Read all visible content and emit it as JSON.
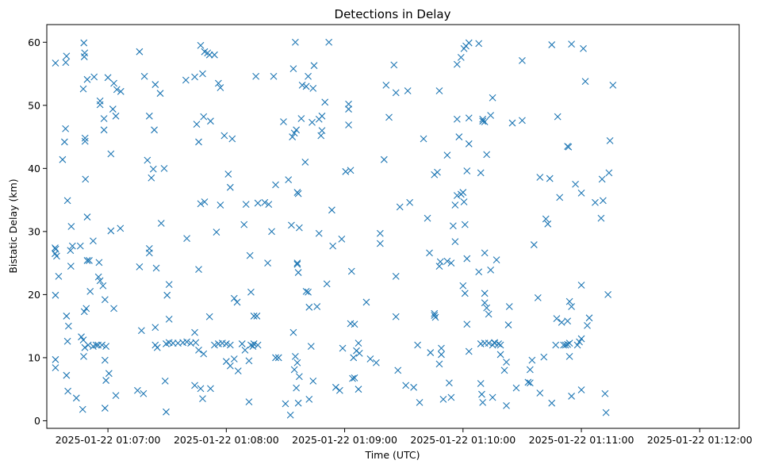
{
  "chart_data": {
    "type": "scatter",
    "title": "Detections in Delay",
    "xlabel": "Time (UTC)",
    "ylabel": "Bistatic Delay (km)",
    "marker": "x",
    "color": "#1f77b4",
    "x_unit": "seconds since 2025-01-22 01:07:00",
    "xlim": [
      -31,
      320
    ],
    "ylim": [
      -1.2,
      62.8
    ],
    "xticks": [
      {
        "value": 0,
        "label": "2025-01-22 01:07:00"
      },
      {
        "value": 60,
        "label": "2025-01-22 01:08:00"
      },
      {
        "value": 120,
        "label": "2025-01-22 01:09:00"
      },
      {
        "value": 180,
        "label": "2025-01-22 01:10:00"
      },
      {
        "value": 240,
        "label": "2025-01-22 01:11:00"
      },
      {
        "value": 300,
        "label": "2025-01-22 01:12:00"
      }
    ],
    "yticks": [
      {
        "value": 0,
        "label": "0"
      },
      {
        "value": 10,
        "label": "10"
      },
      {
        "value": 20,
        "label": "20"
      },
      {
        "value": 30,
        "label": "30"
      },
      {
        "value": 40,
        "label": "40"
      },
      {
        "value": 50,
        "label": "50"
      },
      {
        "value": 60,
        "label": "60"
      }
    ],
    "points": [
      [
        -26.6,
        56.7
      ],
      [
        -21.0,
        57.8
      ],
      [
        -21.4,
        56.8
      ],
      [
        -12.0,
        57.7
      ],
      [
        -12.2,
        59.9
      ],
      [
        -11.8,
        58.3
      ],
      [
        -25.0,
        22.9
      ],
      [
        -26.6,
        19.9
      ],
      [
        -26.8,
        27.4
      ],
      [
        -26.8,
        26.5
      ],
      [
        -26.6,
        9.7
      ],
      [
        -26.6,
        8.4
      ],
      [
        -26.5,
        27.2
      ],
      [
        -26.0,
        26.1
      ],
      [
        -23.0,
        41.4
      ],
      [
        -22.0,
        44.2
      ],
      [
        -20.5,
        34.9
      ],
      [
        -21.5,
        46.3
      ],
      [
        -18.0,
        27.7
      ],
      [
        -18.6,
        30.8
      ],
      [
        -19.0,
        27.0
      ],
      [
        -18.8,
        24.5
      ],
      [
        -20.5,
        12.6
      ],
      [
        -20.0,
        15.0
      ],
      [
        -21.0,
        16.6
      ],
      [
        -20.3,
        4.7
      ],
      [
        -21.0,
        7.2
      ],
      [
        -16.0,
        3.6
      ],
      [
        -14.0,
        27.7
      ],
      [
        -13.5,
        13.3
      ],
      [
        -12.5,
        12.8
      ],
      [
        -11.7,
        11.6
      ],
      [
        -12.3,
        10.2
      ],
      [
        -12.0,
        17.3
      ],
      [
        -11.0,
        17.8
      ],
      [
        -12.8,
        1.8
      ],
      [
        -10.5,
        25.4
      ],
      [
        -10.5,
        32.3
      ],
      [
        -11.4,
        38.3
      ],
      [
        -11.6,
        44.8
      ],
      [
        -11.6,
        44.3
      ],
      [
        -12.5,
        52.6
      ],
      [
        -10.5,
        54.1
      ],
      [
        -7.0,
        54.5
      ],
      [
        -9.0,
        20.5
      ],
      [
        -9.5,
        25.4
      ],
      [
        -4.5,
        25.1
      ],
      [
        -4.8,
        22.8
      ],
      [
        -4.0,
        22.2
      ],
      [
        -2.5,
        21.4
      ],
      [
        -1.5,
        19.2
      ],
      [
        -1.0,
        11.8
      ],
      [
        -1.5,
        9.6
      ],
      [
        -3.0,
        12.0
      ],
      [
        -6.0,
        12.0
      ],
      [
        -7.5,
        11.8
      ],
      [
        -7.5,
        28.5
      ],
      [
        -4.0,
        50.1
      ],
      [
        -4.0,
        50.7
      ],
      [
        -2.0,
        46.1
      ],
      [
        -2.0,
        47.9
      ],
      [
        -1.5,
        2.0
      ],
      [
        0.5,
        7.5
      ],
      [
        1.5,
        42.3
      ],
      [
        2.5,
        49.4
      ],
      [
        3.0,
        53.5
      ],
      [
        4.0,
        48.3
      ],
      [
        4.5,
        52.5
      ],
      [
        6.5,
        52.2
      ],
      [
        6.3,
        30.5
      ],
      [
        1.5,
        30.1
      ],
      [
        0.0,
        54.4
      ],
      [
        3.0,
        17.8
      ],
      [
        4.0,
        4.0
      ],
      [
        -1.0,
        6.4
      ],
      [
        -5.0,
        12.0
      ],
      [
        -10.0,
        12.0
      ],
      [
        15.0,
        4.8
      ],
      [
        18.0,
        4.3
      ],
      [
        16.0,
        24.4
      ],
      [
        17.0,
        14.3
      ],
      [
        16.0,
        58.5
      ],
      [
        18.5,
        54.6
      ],
      [
        20.0,
        41.3
      ],
      [
        21.0,
        48.3
      ],
      [
        21.0,
        27.3
      ],
      [
        21.0,
        26.6
      ],
      [
        22.0,
        38.5
      ],
      [
        23.0,
        39.9
      ],
      [
        23.5,
        46.1
      ],
      [
        24.0,
        53.3
      ],
      [
        24.0,
        14.8
      ],
      [
        24.0,
        12.0
      ],
      [
        24.5,
        24.2
      ],
      [
        25.0,
        11.6
      ],
      [
        26.5,
        51.9
      ],
      [
        27.0,
        31.3
      ],
      [
        28.5,
        40.0
      ],
      [
        29.0,
        6.3
      ],
      [
        29.5,
        1.4
      ],
      [
        30.0,
        19.9
      ],
      [
        31.0,
        21.6
      ],
      [
        31.0,
        16.1
      ],
      [
        31.0,
        12.4
      ],
      [
        29.5,
        12.2
      ],
      [
        33.0,
        12.3
      ],
      [
        35.5,
        12.3
      ],
      [
        38.0,
        12.4
      ],
      [
        40.0,
        12.5
      ],
      [
        42.0,
        12.3
      ],
      [
        44.5,
        12.4
      ],
      [
        44.0,
        14.0
      ],
      [
        40.0,
        28.9
      ],
      [
        39.5,
        54.0
      ],
      [
        44.0,
        54.5
      ],
      [
        48.0,
        55.0
      ],
      [
        47.0,
        59.5
      ],
      [
        49.0,
        58.5
      ],
      [
        50.5,
        58.3
      ],
      [
        51.5,
        58.0
      ],
      [
        54.0,
        58.0
      ],
      [
        56.0,
        53.5
      ],
      [
        57.0,
        52.8
      ],
      [
        52.0,
        47.5
      ],
      [
        46.0,
        44.2
      ],
      [
        45.0,
        47.0
      ],
      [
        47.0,
        34.4
      ],
      [
        49.0,
        34.7
      ],
      [
        48.5,
        48.2
      ],
      [
        46.0,
        24.0
      ],
      [
        51.5,
        16.5
      ],
      [
        54.0,
        12.0
      ],
      [
        56.0,
        12.2
      ],
      [
        58.0,
        12.3
      ],
      [
        60.0,
        12.2
      ],
      [
        62.0,
        12.0
      ],
      [
        64.0,
        9.8
      ],
      [
        66.0,
        7.9
      ],
      [
        68.0,
        12.2
      ],
      [
        69.5,
        11.2
      ],
      [
        62.0,
        8.7
      ],
      [
        60.0,
        9.4
      ],
      [
        48.5,
        10.6
      ],
      [
        46.0,
        11.2
      ],
      [
        44.0,
        5.6
      ],
      [
        47.0,
        5.1
      ],
      [
        48.0,
        3.5
      ],
      [
        52.0,
        5.1
      ],
      [
        55.0,
        29.9
      ],
      [
        57.0,
        34.2
      ],
      [
        59.0,
        45.2
      ],
      [
        61.0,
        39.1
      ],
      [
        62.0,
        37.0
      ],
      [
        63.0,
        44.7
      ],
      [
        64.0,
        19.4
      ],
      [
        65.5,
        18.8
      ],
      [
        69.0,
        31.1
      ],
      [
        70.0,
        34.3
      ],
      [
        72.0,
        26.2
      ],
      [
        72.5,
        20.4
      ],
      [
        74.0,
        16.6
      ],
      [
        75.5,
        16.6
      ],
      [
        74.0,
        12.2
      ],
      [
        76.0,
        12.0
      ],
      [
        73.5,
        11.8
      ],
      [
        72.5,
        12.0
      ],
      [
        71.5,
        9.5
      ],
      [
        71.5,
        3.0
      ],
      [
        79.5,
        34.6
      ],
      [
        81.5,
        34.3
      ],
      [
        83.0,
        30.0
      ],
      [
        81.0,
        25.0
      ],
      [
        76.0,
        34.5
      ],
      [
        75.0,
        54.6
      ],
      [
        85.0,
        37.4
      ],
      [
        84.0,
        54.6
      ],
      [
        85.0,
        10.0
      ],
      [
        86.5,
        10.0
      ],
      [
        90.0,
        2.7
      ],
      [
        92.5,
        0.9
      ],
      [
        89.0,
        47.4
      ],
      [
        91.5,
        38.2
      ],
      [
        93.0,
        31.0
      ],
      [
        93.5,
        45.0
      ],
      [
        94.5,
        45.6
      ],
      [
        94.0,
        55.8
      ],
      [
        95.0,
        60.0
      ],
      [
        95.5,
        46.1
      ],
      [
        96.0,
        36.2
      ],
      [
        96.5,
        36.0
      ],
      [
        96.0,
        25.0
      ],
      [
        96.0,
        24.8
      ],
      [
        96.5,
        23.5
      ],
      [
        97.0,
        30.6
      ],
      [
        98.0,
        47.9
      ],
      [
        98.5,
        53.2
      ],
      [
        100.0,
        41.0
      ],
      [
        100.5,
        53.0
      ],
      [
        101.5,
        54.6
      ],
      [
        100.5,
        20.5
      ],
      [
        101.5,
        20.4
      ],
      [
        102.0,
        18.0
      ],
      [
        104.5,
        56.3
      ],
      [
        104.0,
        52.7
      ],
      [
        103.5,
        47.3
      ],
      [
        107.0,
        47.8
      ],
      [
        106.0,
        18.1
      ],
      [
        103.0,
        11.8
      ],
      [
        96.0,
        9.2
      ],
      [
        97.0,
        7.0
      ],
      [
        94.0,
        14.0
      ],
      [
        95.0,
        10.2
      ],
      [
        94.5,
        8.1
      ],
      [
        95.5,
        5.2
      ],
      [
        96.5,
        2.8
      ],
      [
        102.0,
        3.4
      ],
      [
        104.0,
        6.3
      ],
      [
        107.0,
        29.7
      ],
      [
        108.0,
        45.2
      ],
      [
        108.5,
        46.0
      ],
      [
        108.5,
        48.3
      ],
      [
        110.0,
        50.5
      ],
      [
        112.0,
        60.0
      ],
      [
        111.0,
        21.7
      ],
      [
        113.5,
        33.4
      ],
      [
        114.0,
        27.7
      ],
      [
        115.5,
        5.3
      ],
      [
        117.5,
        4.8
      ],
      [
        118.5,
        28.8
      ],
      [
        119.0,
        11.5
      ],
      [
        120.5,
        39.5
      ],
      [
        122.0,
        50.2
      ],
      [
        122.0,
        49.4
      ],
      [
        122.0,
        46.9
      ],
      [
        123.0,
        39.7
      ],
      [
        123.0,
        15.4
      ],
      [
        125.0,
        15.3
      ],
      [
        123.5,
        23.7
      ],
      [
        125.0,
        6.8
      ],
      [
        124.0,
        6.7
      ],
      [
        124.5,
        10.0
      ],
      [
        126.0,
        11.1
      ],
      [
        127.0,
        12.3
      ],
      [
        127.5,
        10.7
      ],
      [
        127.0,
        5.0
      ],
      [
        131.0,
        18.8
      ],
      [
        133.0,
        9.8
      ],
      [
        136.0,
        9.2
      ],
      [
        138.0,
        28.1
      ],
      [
        138.0,
        29.7
      ],
      [
        140.0,
        41.4
      ],
      [
        141.0,
        53.2
      ],
      [
        142.5,
        48.1
      ],
      [
        145.0,
        56.4
      ],
      [
        146.0,
        52.0
      ],
      [
        148.0,
        33.9
      ],
      [
        146.0,
        22.9
      ],
      [
        146.0,
        16.5
      ],
      [
        147.0,
        8.0
      ],
      [
        151.0,
        5.6
      ],
      [
        152.0,
        52.3
      ],
      [
        153.0,
        34.6
      ],
      [
        155.0,
        5.3
      ],
      [
        157.0,
        12.0
      ],
      [
        158.0,
        2.9
      ],
      [
        160.0,
        44.7
      ],
      [
        162.0,
        32.1
      ],
      [
        163.0,
        26.6
      ],
      [
        163.5,
        10.8
      ],
      [
        165.5,
        16.7
      ],
      [
        165.5,
        17.0
      ],
      [
        166.0,
        16.4
      ],
      [
        165.5,
        39.0
      ],
      [
        167.0,
        39.4
      ],
      [
        168.0,
        52.3
      ],
      [
        168.5,
        25.2
      ],
      [
        168.0,
        24.5
      ],
      [
        169.0,
        11.5
      ],
      [
        169.0,
        10.5
      ],
      [
        168.0,
        9.0
      ],
      [
        170.0,
        3.4
      ],
      [
        173.0,
        6.0
      ],
      [
        174.0,
        3.7
      ],
      [
        172.0,
        25.3
      ],
      [
        172.0,
        42.1
      ],
      [
        174.0,
        25.0
      ],
      [
        175.0,
        30.9
      ],
      [
        176.0,
        28.4
      ],
      [
        176.0,
        34.2
      ],
      [
        177.0,
        35.7
      ],
      [
        177.0,
        47.8
      ],
      [
        178.0,
        45.0
      ],
      [
        179.0,
        35.9
      ],
      [
        180.0,
        36.2
      ],
      [
        180.5,
        34.7
      ],
      [
        181.0,
        31.1
      ],
      [
        182.0,
        15.3
      ],
      [
        181.0,
        20.2
      ],
      [
        180.0,
        21.4
      ],
      [
        183.0,
        11.0
      ],
      [
        182.0,
        25.7
      ],
      [
        182.0,
        39.6
      ],
      [
        183.0,
        48.0
      ],
      [
        183.0,
        43.9
      ],
      [
        177.0,
        56.5
      ],
      [
        179.0,
        57.6
      ],
      [
        180.5,
        59.0
      ],
      [
        181.5,
        59.4
      ],
      [
        183.0,
        59.9
      ],
      [
        188.0,
        59.8
      ],
      [
        190.0,
        47.8
      ],
      [
        189.0,
        39.3
      ],
      [
        191.0,
        47.4
      ],
      [
        192.0,
        42.2
      ],
      [
        190.0,
        47.5
      ],
      [
        194.0,
        48.4
      ],
      [
        195.0,
        51.2
      ],
      [
        194.0,
        23.9
      ],
      [
        188.0,
        23.6
      ],
      [
        197.0,
        25.5
      ],
      [
        191.0,
        26.6
      ],
      [
        191.0,
        20.2
      ],
      [
        192.0,
        17.9
      ],
      [
        193.0,
        16.9
      ],
      [
        191.0,
        18.7
      ],
      [
        189.0,
        12.2
      ],
      [
        191.0,
        12.3
      ],
      [
        193.0,
        12.3
      ],
      [
        195.0,
        12.0
      ],
      [
        196.0,
        12.3
      ],
      [
        198.0,
        12.2
      ],
      [
        199.0,
        12.0
      ],
      [
        189.0,
        5.9
      ],
      [
        189.5,
        4.2
      ],
      [
        190.0,
        2.9
      ],
      [
        195.0,
        3.7
      ],
      [
        196.0,
        12.4
      ],
      [
        199.0,
        10.5
      ],
      [
        201.0,
        8.0
      ],
      [
        202.0,
        9.3
      ],
      [
        202.0,
        2.4
      ],
      [
        203.0,
        15.2
      ],
      [
        203.5,
        18.1
      ],
      [
        205.0,
        47.2
      ],
      [
        207.0,
        5.2
      ],
      [
        210.0,
        57.1
      ],
      [
        210.0,
        47.6
      ],
      [
        213.0,
        6.1
      ],
      [
        214.0,
        6.0
      ],
      [
        214.0,
        8.1
      ],
      [
        215.0,
        9.6
      ],
      [
        216.0,
        27.9
      ],
      [
        218.0,
        19.5
      ],
      [
        219.0,
        38.6
      ],
      [
        219.0,
        4.4
      ],
      [
        221.0,
        10.1
      ],
      [
        222.0,
        32.0
      ],
      [
        223.0,
        31.2
      ],
      [
        224.0,
        38.4
      ],
      [
        225.0,
        2.8
      ],
      [
        225.0,
        59.6
      ],
      [
        227.0,
        12.0
      ],
      [
        227.5,
        16.2
      ],
      [
        228.0,
        48.2
      ],
      [
        229.0,
        35.4
      ],
      [
        230.0,
        15.6
      ],
      [
        231.0,
        12.0
      ],
      [
        232.0,
        12.0
      ],
      [
        233.0,
        12.1
      ],
      [
        234.0,
        12.3
      ],
      [
        233.0,
        43.5
      ],
      [
        233.5,
        43.4
      ],
      [
        234.0,
        18.9
      ],
      [
        235.0,
        18.1
      ],
      [
        235.0,
        59.7
      ],
      [
        234.0,
        10.2
      ],
      [
        233.0,
        15.8
      ],
      [
        235.0,
        3.9
      ],
      [
        237.0,
        37.5
      ],
      [
        238.0,
        12.0
      ],
      [
        239.0,
        12.5
      ],
      [
        240.0,
        13.0
      ],
      [
        240.0,
        21.5
      ],
      [
        240.0,
        4.9
      ],
      [
        240.0,
        36.1
      ],
      [
        241.0,
        59.0
      ],
      [
        242.0,
        53.8
      ],
      [
        243.0,
        15.1
      ],
      [
        244.0,
        16.3
      ],
      [
        247.0,
        34.6
      ],
      [
        250.0,
        32.1
      ],
      [
        250.5,
        38.3
      ],
      [
        251.0,
        34.9
      ],
      [
        252.0,
        4.3
      ],
      [
        252.5,
        1.3
      ],
      [
        253.5,
        20.0
      ],
      [
        254.0,
        39.3
      ],
      [
        254.5,
        44.4
      ],
      [
        256.0,
        53.2
      ]
    ]
  }
}
